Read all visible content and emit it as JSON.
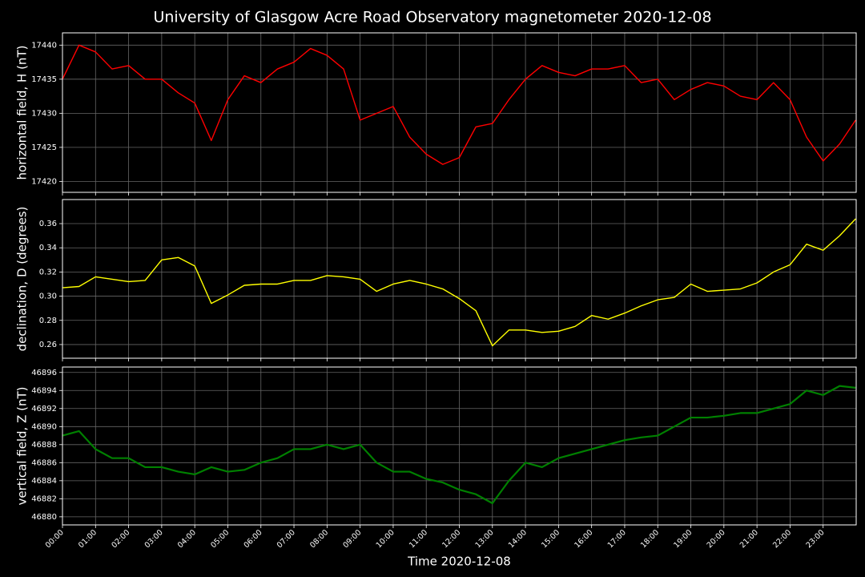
{
  "chart_data": [
    {
      "type": "line",
      "title": "University of Glasgow Acre Road Observatory magnetometer 2020-12-08",
      "ylabel": "horizontal field, H (nT)",
      "xlim": [
        "00:00",
        "24:00"
      ],
      "ylim": [
        17418.4,
        17441.8
      ],
      "yticks": [
        17420,
        17425,
        17430,
        17435,
        17440
      ],
      "grid": true,
      "x": [
        "00:00",
        "00:30",
        "01:00",
        "01:30",
        "02:00",
        "02:30",
        "03:00",
        "03:30",
        "04:00",
        "04:30",
        "05:00",
        "05:30",
        "06:00",
        "06:30",
        "07:00",
        "07:30",
        "08:00",
        "08:30",
        "09:00",
        "09:30",
        "10:00",
        "10:30",
        "11:00",
        "11:30",
        "12:00",
        "12:30",
        "13:00",
        "13:30",
        "14:00",
        "14:30",
        "15:00",
        "15:30",
        "16:00",
        "16:30",
        "17:00",
        "17:30",
        "18:00",
        "18:30",
        "19:00",
        "19:30",
        "20:00",
        "20:30",
        "21:00",
        "21:30",
        "22:00",
        "22:30",
        "23:00",
        "23:30",
        "23:59"
      ],
      "series": [
        {
          "color": "#ff0000",
          "values": [
            17435,
            17440,
            17439,
            17436.5,
            17437,
            17435,
            17435,
            17433,
            17431.5,
            17426,
            17432,
            17435.5,
            17434.5,
            17436.5,
            17437.5,
            17439.5,
            17438.5,
            17436.5,
            17429,
            17430,
            17431,
            17426.5,
            17424,
            17422.5,
            17423.5,
            17428,
            17428.5,
            17432,
            17435,
            17437,
            17436,
            17435.5,
            17436.5,
            17436.5,
            17437,
            17434.5,
            17435,
            17432,
            17433.5,
            17434.5,
            17434,
            17432.5,
            17432,
            17434.5,
            17432,
            17426.5,
            17423,
            17425.5,
            17429
          ]
        }
      ]
    },
    {
      "type": "line",
      "ylabel": "declination, D (degrees)",
      "xlim": [
        "00:00",
        "24:00"
      ],
      "ylim": [
        0.2487,
        0.3799
      ],
      "yticks": [
        0.26,
        0.28,
        {
          "value": 0.3,
          "label": "0.30"
        },
        0.32,
        0.34,
        0.36
      ],
      "grid": true,
      "x": [
        "00:00",
        "00:30",
        "01:00",
        "01:30",
        "02:00",
        "02:30",
        "03:00",
        "03:30",
        "04:00",
        "04:30",
        "05:00",
        "05:30",
        "06:00",
        "06:30",
        "07:00",
        "07:30",
        "08:00",
        "08:30",
        "09:00",
        "09:30",
        "10:00",
        "10:30",
        "11:00",
        "11:30",
        "12:00",
        "12:30",
        "13:00",
        "13:30",
        "14:00",
        "14:30",
        "15:00",
        "15:30",
        "16:00",
        "16:30",
        "17:00",
        "17:30",
        "18:00",
        "18:30",
        "19:00",
        "19:30",
        "20:00",
        "20:30",
        "21:00",
        "21:30",
        "22:00",
        "22:30",
        "23:00",
        "23:30",
        "23:59"
      ],
      "series": [
        {
          "color": "#ffff00",
          "values": [
            0.307,
            0.308,
            0.316,
            0.314,
            0.312,
            0.313,
            0.33,
            0.332,
            0.325,
            0.294,
            0.301,
            0.309,
            0.31,
            0.31,
            0.313,
            0.313,
            0.317,
            0.316,
            0.314,
            0.304,
            0.31,
            0.313,
            0.31,
            0.306,
            0.298,
            0.288,
            0.259,
            0.272,
            0.272,
            0.27,
            0.271,
            0.275,
            0.284,
            0.281,
            0.286,
            0.292,
            0.297,
            0.299,
            0.31,
            0.304,
            0.305,
            0.306,
            0.311,
            0.32,
            0.326,
            0.343,
            0.338,
            0.35,
            0.364
          ]
        }
      ]
    },
    {
      "type": "line",
      "ylabel": "vertical field, Z (nT)",
      "xlabel": "Time 2020-12-08",
      "xlim": [
        "00:00",
        "24:00"
      ],
      "xticks": [
        "00:00",
        "01:00",
        "02:00",
        "03:00",
        "04:00",
        "05:00",
        "06:00",
        "07:00",
        "08:00",
        "09:00",
        "10:00",
        "11:00",
        "12:00",
        "13:00",
        "14:00",
        "15:00",
        "16:00",
        "17:00",
        "18:00",
        "19:00",
        "20:00",
        "21:00",
        "22:00",
        "23:00"
      ],
      "ylim": [
        46879.1,
        46896.6
      ],
      "yticks": [
        46880,
        46882,
        46884,
        46886,
        46888,
        46890,
        46892,
        46894,
        46896
      ],
      "grid": true,
      "x": [
        "00:00",
        "00:30",
        "01:00",
        "01:30",
        "02:00",
        "02:30",
        "03:00",
        "03:30",
        "04:00",
        "04:30",
        "05:00",
        "05:30",
        "06:00",
        "06:30",
        "07:00",
        "07:30",
        "08:00",
        "08:30",
        "09:00",
        "09:30",
        "10:00",
        "10:30",
        "11:00",
        "11:30",
        "12:00",
        "12:30",
        "13:00",
        "13:30",
        "14:00",
        "14:30",
        "15:00",
        "15:30",
        "16:00",
        "16:30",
        "17:00",
        "17:30",
        "18:00",
        "18:30",
        "19:00",
        "19:30",
        "20:00",
        "20:30",
        "21:00",
        "21:30",
        "22:00",
        "22:30",
        "23:00",
        "23:30",
        "23:59"
      ],
      "series": [
        {
          "color": "#008000",
          "values": [
            46889,
            46889.5,
            46887.5,
            46886.5,
            46886.5,
            46885.5,
            46885.5,
            46885,
            46884.7,
            46885.5,
            46885,
            46885.2,
            46886,
            46886.5,
            46887.5,
            46887.5,
            46888,
            46887.5,
            46888,
            46886,
            46885,
            46885,
            46884.2,
            46883.8,
            46883,
            46882.5,
            46881.5,
            46884,
            46886,
            46885.5,
            46886.5,
            46887,
            46887.5,
            46888,
            46888.5,
            46888.8,
            46889,
            46890,
            46891,
            46891,
            46891.2,
            46891.5,
            46891.5,
            46892,
            46892.5,
            46894,
            46893.5,
            46894.5,
            46894.3
          ]
        }
      ]
    }
  ]
}
